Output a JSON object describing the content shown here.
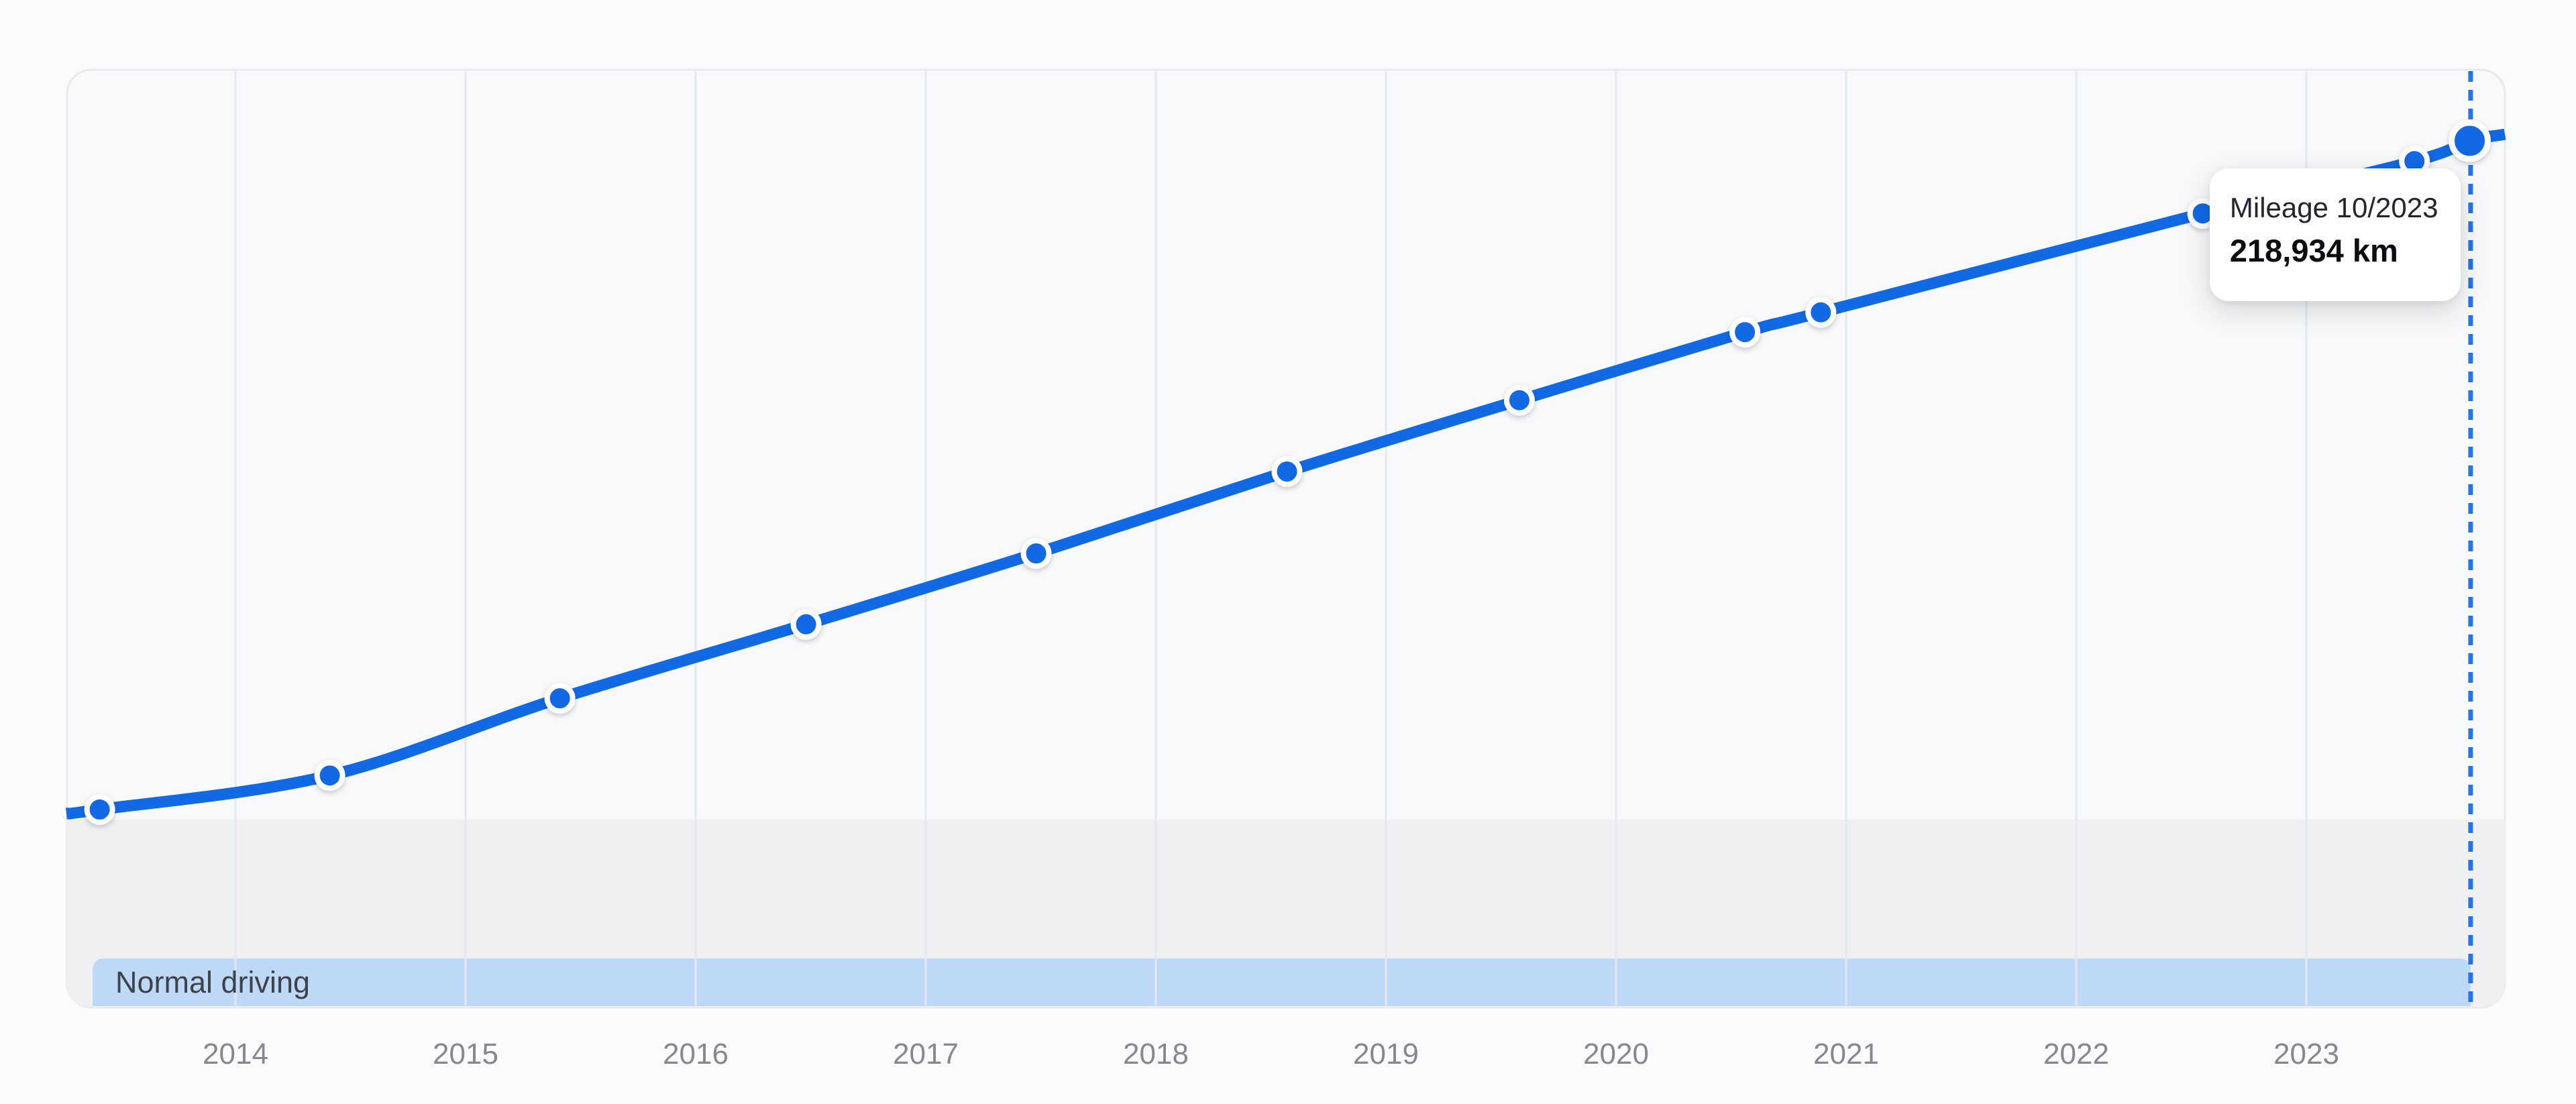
{
  "chart_data": {
    "type": "line",
    "series_name": "Mileage",
    "unit": "km",
    "x_tick_labels": [
      "2014",
      "2015",
      "2016",
      "2017",
      "2018",
      "2019",
      "2020",
      "2021",
      "2022",
      "2023"
    ],
    "x_range_year": [
      2013.27,
      2023.86
    ],
    "ylim_km": [
      0,
      236900
    ],
    "grid": "vertical-yearly",
    "legend_position": "none",
    "points": [
      {
        "date_approx": "05/2013",
        "year_frac": 2013.41,
        "km": 50000,
        "estimated": true
      },
      {
        "date_approx": "05/2014",
        "year_frac": 2014.41,
        "km": 58600,
        "estimated": true
      },
      {
        "date_approx": "06/2015",
        "year_frac": 2015.41,
        "km": 78100,
        "estimated": true
      },
      {
        "date_approx": "06/2016",
        "year_frac": 2016.48,
        "km": 96800,
        "estimated": true
      },
      {
        "date_approx": "06/2017",
        "year_frac": 2017.48,
        "km": 114700,
        "estimated": true
      },
      {
        "date_approx": "07/2018",
        "year_frac": 2018.57,
        "km": 135400,
        "estimated": true
      },
      {
        "date_approx": "08/2019",
        "year_frac": 2019.58,
        "km": 153400,
        "estimated": true
      },
      {
        "date_approx": "07/2020",
        "year_frac": 2020.56,
        "km": 170600,
        "estimated": true
      },
      {
        "date_approx": "11/2020",
        "year_frac": 2020.89,
        "km": 175600,
        "estimated": true
      },
      {
        "date_approx": "07/2022",
        "year_frac": 2022.55,
        "km": 200600,
        "estimated": true
      },
      {
        "date_approx": "06/2023",
        "year_frac": 2023.47,
        "km": 213800,
        "estimated": true
      },
      {
        "date": "10/2023",
        "year_frac": 2023.71,
        "km": 218934,
        "estimated": false,
        "highlighted": true
      }
    ],
    "line_extension": {
      "left": {
        "year_frac": 2013.265,
        "km": 49000
      },
      "right": {
        "year_frac": 2023.863,
        "km": 220600
      }
    },
    "annotation_band": {
      "label": "Normal driving"
    },
    "cursor": {
      "year_frac": 2023.714,
      "style": "dashed-vertical"
    }
  },
  "tooltip": {
    "title": "Mileage 10/2023",
    "value": "218,934 km"
  },
  "colors": {
    "line": "#1269E4",
    "marker_fill": "#1269E4",
    "marker_ring": "#FFFFFF",
    "dashed_cursor": "#2276EC",
    "band_bg": "#BED8F7",
    "band_text": "#3D434B",
    "gray_region": "#EFF0F2",
    "gridline": "#E4E9F0",
    "plot_border": "#E7EAEF",
    "plot_bg": "#F8F9FA",
    "page_bg": "#FAFBFC",
    "axis_label": "#85888F",
    "tooltip_bg": "#FFFFFF",
    "tooltip_title": "#22252B",
    "tooltip_value": "#0B0D11"
  }
}
